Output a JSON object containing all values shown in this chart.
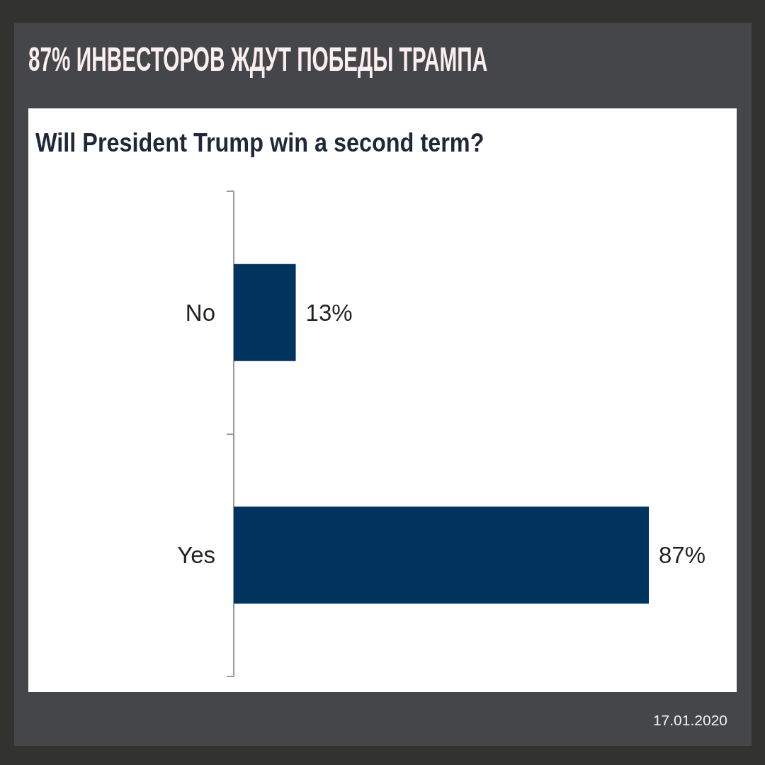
{
  "chart_data": {
    "type": "bar",
    "orientation": "horizontal",
    "title": "87% ИНВЕСТОРОВ ЖДУТ ПОБЕДЫ ТРАМПА",
    "subtitle": "Will President Trump win a second term?",
    "categories": [
      "No",
      "Yes"
    ],
    "values": [
      13,
      87
    ],
    "color": "#00345e",
    "value_labels": [
      "13%",
      "87%"
    ],
    "tick_labels": "y",
    "annotations": [
      "17.01.2020"
    ]
  }
}
